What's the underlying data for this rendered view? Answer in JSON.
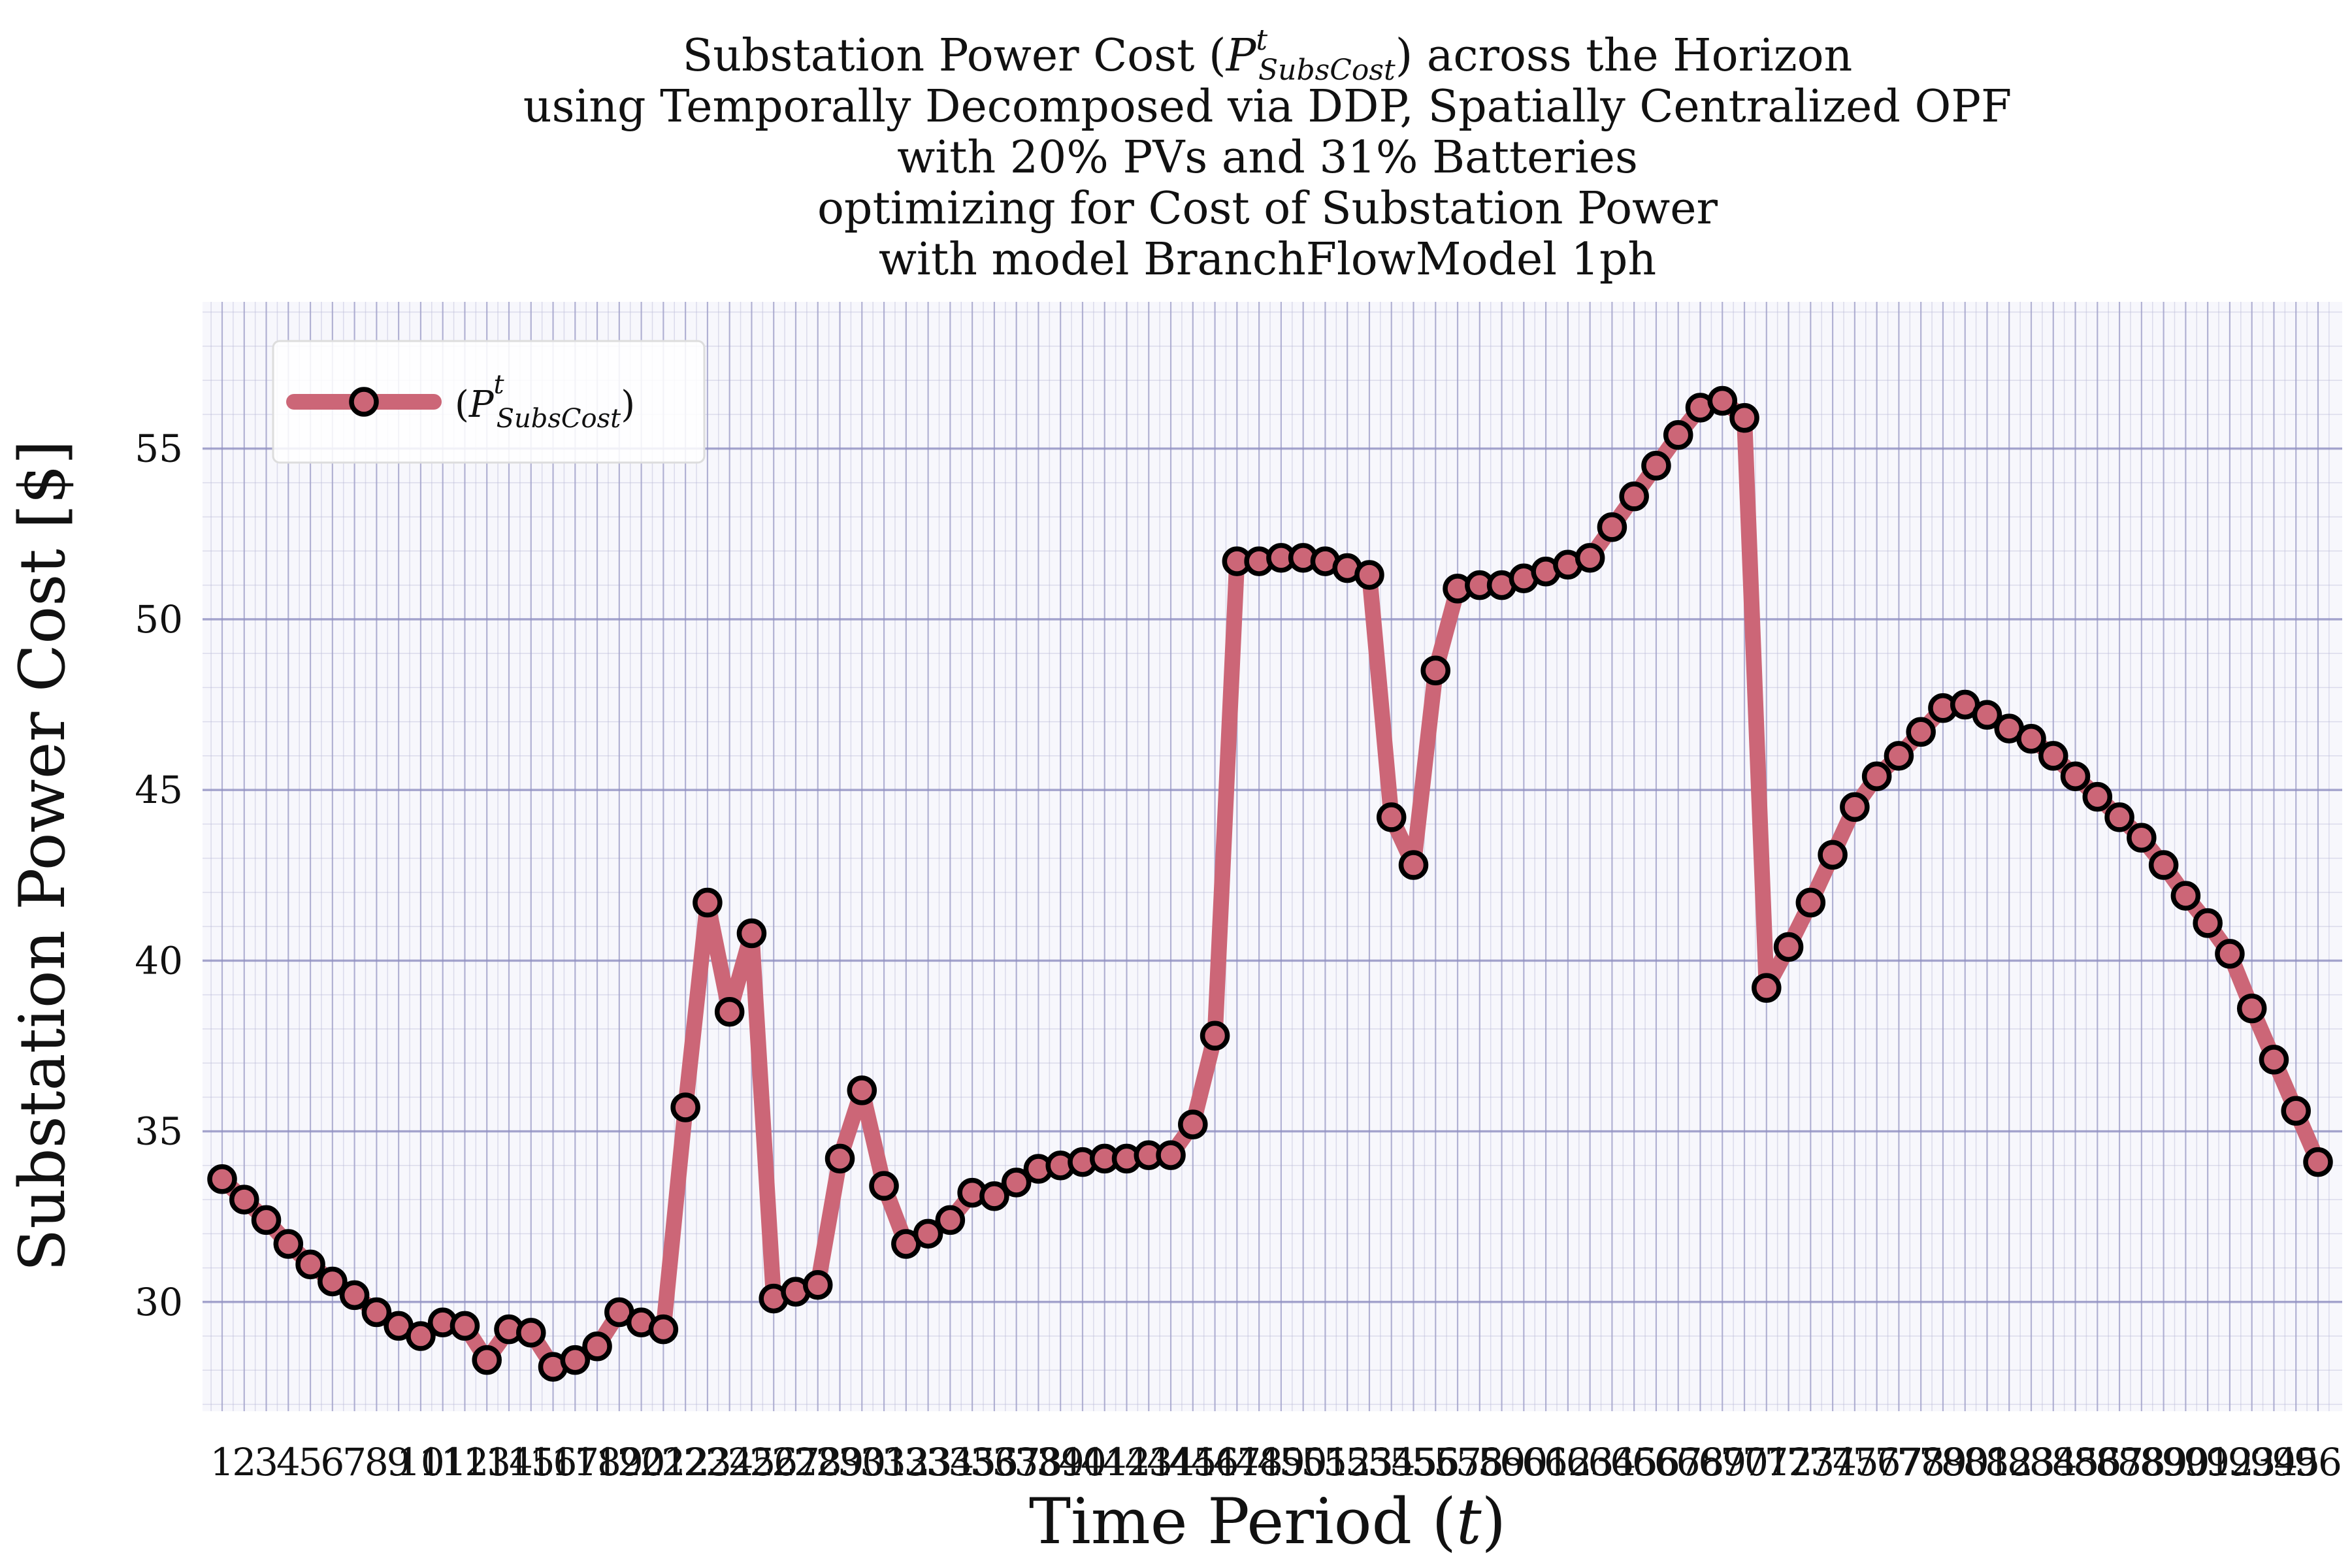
{
  "chart_data": {
    "type": "line",
    "title_lines": [
      "Substation Power Cost (P^t_SubsCost) across the Horizon",
      "using Temporally Decomposed via DDP, Spatially Centralized OPF",
      "with 20% PVs and 31% Batteries",
      "optimizing for Cost of Substation Power",
      "with model BranchFlowModel 1ph"
    ],
    "xlabel": "Time Period (t)",
    "ylabel": "Substation Power Cost [$]",
    "ylim": [
      26.8,
      59.3
    ],
    "yticks": [
      30,
      35,
      40,
      45,
      50,
      55
    ],
    "grid": true,
    "legend": {
      "label": "(P^t_SubsCost)",
      "placement": "top-left"
    },
    "colors": {
      "line": "#cc6677",
      "marker_edge": "#000000",
      "grid": "#b8b8d8",
      "plot_bg": "#f7f7fc"
    },
    "x": [
      1,
      2,
      3,
      4,
      5,
      6,
      7,
      8,
      9,
      10,
      11,
      12,
      13,
      14,
      15,
      16,
      17,
      18,
      19,
      20,
      21,
      22,
      23,
      24,
      25,
      26,
      27,
      28,
      29,
      30,
      31,
      32,
      33,
      34,
      35,
      36,
      37,
      38,
      39,
      40,
      41,
      42,
      43,
      44,
      45,
      46,
      47,
      48,
      49,
      50,
      51,
      52,
      53,
      54,
      55,
      56,
      57,
      58,
      59,
      60,
      61,
      62,
      63,
      64,
      65,
      66,
      67,
      68,
      69,
      70,
      71,
      72,
      73,
      74,
      75,
      76,
      77,
      78,
      79,
      80,
      81,
      82,
      83,
      84,
      85,
      86,
      87,
      88,
      89,
      90,
      91,
      92,
      93,
      94,
      95,
      96
    ],
    "series": [
      {
        "name": "(P^t_SubsCost)",
        "values": [
          33.6,
          33.0,
          32.4,
          31.7,
          31.1,
          30.6,
          30.2,
          29.7,
          29.3,
          29.0,
          29.4,
          29.3,
          28.3,
          29.2,
          29.1,
          28.1,
          28.3,
          28.7,
          29.7,
          29.4,
          29.2,
          35.7,
          41.7,
          38.5,
          40.8,
          30.1,
          30.3,
          30.5,
          34.2,
          36.2,
          33.4,
          31.7,
          32.0,
          32.4,
          33.2,
          33.1,
          33.5,
          33.9,
          34.0,
          34.1,
          34.2,
          34.2,
          34.3,
          34.3,
          35.2,
          37.8,
          51.7,
          51.7,
          51.8,
          51.8,
          51.7,
          51.5,
          51.3,
          44.2,
          42.8,
          48.5,
          50.9,
          51.0,
          51.0,
          51.2,
          51.4,
          51.6,
          51.8,
          52.7,
          53.6,
          54.5,
          55.4,
          56.2,
          56.4,
          55.9,
          39.2,
          40.4,
          41.7,
          43.1,
          44.5,
          45.4,
          46.0,
          46.7,
          47.4,
          47.5,
          47.2,
          46.8,
          46.5,
          46.0,
          45.4,
          44.8,
          44.2,
          43.6,
          42.8,
          41.9,
          41.1,
          40.2,
          38.6,
          37.1,
          35.6,
          34.1
        ]
      }
    ]
  }
}
